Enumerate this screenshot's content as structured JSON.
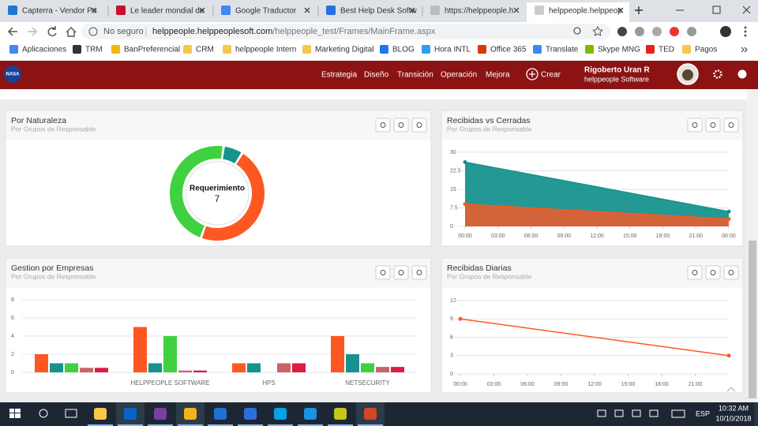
{
  "browser": {
    "tabs": [
      "Capterra - Vendor Po",
      "Le leader mondial de",
      "Google Traductor",
      "Best Help Desk Softw",
      "https://helppeople.h",
      "helppeople.helppeop"
    ],
    "security": "No seguro",
    "url_host": "helppeople.helppeoplesoft.com",
    "url_path": "/helppeople_test/Frames/MainFrame.aspx",
    "bookmarks": [
      "Aplicaciones",
      "TRM",
      "BanPreferencial",
      "CRM",
      "helppeople Intern",
      "Marketing Digital",
      "BLOG",
      "Hora INTL",
      "Office 365",
      "Translate",
      "Skype MNG",
      "TED",
      "Pagos"
    ]
  },
  "app": {
    "logo": "NASA",
    "nav": [
      "Estrategia",
      "Diseño",
      "Transición",
      "Operación",
      "Mejora"
    ],
    "create": "Crear",
    "user_name": "Rigoberto Uran R",
    "user_company": "helppeople Software"
  },
  "chart_data": [
    {
      "type": "pie",
      "donut": true,
      "title": "Por Naturaleza",
      "subtitle": "Por Grupos de Responsable",
      "categories": [
        null,
        "Requerimiento",
        null
      ],
      "values": [
        1,
        7,
        7
      ],
      "colors": [
        "#17928e",
        "#ff5722",
        "#3fd13f"
      ]
    },
    {
      "type": "area",
      "title": "Recibidas vs Cerradas",
      "subtitle": "Por Grupos de Responsable",
      "x": [
        0,
        24
      ],
      "xlim": [
        0,
        24
      ],
      "xticks": [
        {
          "value": 0,
          "label": "00:00"
        },
        {
          "value": 3,
          "label": "03:00"
        },
        {
          "value": 6,
          "label": "06:00"
        },
        {
          "value": 9,
          "label": "09:00"
        },
        {
          "value": 12,
          "label": "12:00"
        },
        {
          "value": 15,
          "label": "15:00"
        },
        {
          "value": 18,
          "label": "18:00"
        },
        {
          "value": 21,
          "label": "21:00"
        },
        {
          "value": 24,
          "label": "00:00"
        }
      ],
      "ylim": [
        0,
        30
      ],
      "yticks": [
        0,
        7.5,
        15,
        22.5,
        30
      ],
      "grid": true,
      "series": [
        {
          "color": "#17928e",
          "values": [
            26,
            6
          ]
        },
        {
          "color": "#ff5722",
          "values": [
            9,
            3
          ]
        }
      ]
    },
    {
      "type": "bar",
      "title": "Gestion por Empresas",
      "subtitle": "Por Grupos de Responsable",
      "categories": [
        null,
        "HELPPEOPLE SOFTWARE",
        "HPS",
        "NETSECURITY"
      ],
      "ylim": [
        0,
        8
      ],
      "yticks": [
        0,
        2,
        4,
        6,
        8
      ],
      "grid": true,
      "series": [
        {
          "color": "#ff5722",
          "values": [
            2,
            5,
            1,
            4
          ]
        },
        {
          "color": "#17928e",
          "values": [
            1,
            1,
            1,
            2
          ]
        },
        {
          "color": "#3fd13f",
          "values": [
            1,
            4,
            0,
            1
          ]
        },
        {
          "color": "#c8646a",
          "values": [
            0.5,
            0.2,
            1,
            0.6
          ]
        },
        {
          "color": "#dc1e46",
          "values": [
            0.5,
            0.2,
            1,
            0.6
          ]
        }
      ]
    },
    {
      "type": "line",
      "title": "Recibidas Diarias",
      "subtitle": "Por Grupos de Responsable",
      "x": [
        0,
        24
      ],
      "xlim": [
        0,
        24
      ],
      "xticks": [
        {
          "value": 0,
          "label": "00:00"
        },
        {
          "value": 3,
          "label": "03:00"
        },
        {
          "value": 6,
          "label": "06:00"
        },
        {
          "value": 9,
          "label": "09:00"
        },
        {
          "value": 12,
          "label": "12:00"
        },
        {
          "value": 15,
          "label": "15:00"
        },
        {
          "value": 18,
          "label": "18:00"
        },
        {
          "value": 21,
          "label": "21:00"
        }
      ],
      "ylim": [
        0,
        12
      ],
      "yticks": [
        0,
        3,
        6,
        9,
        12
      ],
      "grid": true,
      "series": [
        {
          "color": "#ff5722",
          "values": [
            9,
            3
          ]
        }
      ]
    }
  ],
  "taskbar": {
    "language": "ESP",
    "time": "10:32 AM",
    "date": "10/10/2018"
  }
}
